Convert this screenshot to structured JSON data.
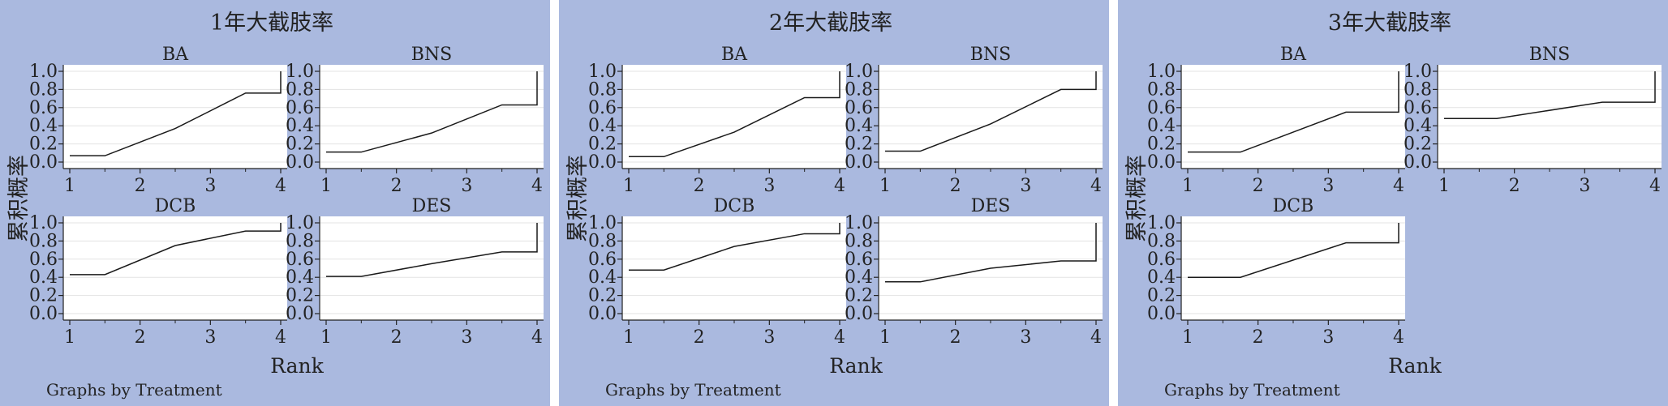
{
  "colors": {
    "panel_bg": "#aab9df",
    "plot_bg": "#ffffff",
    "grid": "#e3e3e3",
    "line": "#1a1a1a",
    "text": "#222222"
  },
  "common": {
    "xlabel": "Rank",
    "ylabel": "累积概率",
    "note": "Graphs by Treatment",
    "x_ticks": [
      "1",
      "2",
      "3",
      "4"
    ],
    "y_ticks": [
      "0.0",
      "0.2",
      "0.4",
      "0.6",
      "0.8",
      "1.0"
    ]
  },
  "chart_data": [
    {
      "type": "line",
      "title": "1年大截肢率",
      "xlabel": "Rank",
      "ylabel": "累积概率",
      "xlim": [
        1,
        4
      ],
      "ylim": [
        0,
        1
      ],
      "grid": true,
      "series": [
        {
          "name": "BA",
          "x": [
            1,
            1.5,
            2.5,
            3.5,
            4,
            4
          ],
          "y": [
            0.07,
            0.07,
            0.37,
            0.76,
            0.76,
            1.0
          ]
        },
        {
          "name": "BNS",
          "x": [
            1,
            1.5,
            2.5,
            3.5,
            4,
            4
          ],
          "y": [
            0.11,
            0.11,
            0.32,
            0.63,
            0.63,
            1.0
          ]
        },
        {
          "name": "DCB",
          "x": [
            1,
            1.5,
            2.5,
            3.5,
            4,
            4
          ],
          "y": [
            0.43,
            0.43,
            0.75,
            0.91,
            0.91,
            1.0
          ]
        },
        {
          "name": "DES",
          "x": [
            1,
            1.5,
            2.5,
            3.5,
            4,
            4
          ],
          "y": [
            0.41,
            0.41,
            0.55,
            0.68,
            0.68,
            1.0
          ]
        }
      ]
    },
    {
      "type": "line",
      "title": "2年大截肢率",
      "xlabel": "Rank",
      "ylabel": "累积概率",
      "xlim": [
        1,
        4
      ],
      "ylim": [
        0,
        1
      ],
      "grid": true,
      "series": [
        {
          "name": "BA",
          "x": [
            1,
            1.5,
            2.5,
            3.5,
            4,
            4
          ],
          "y": [
            0.06,
            0.06,
            0.33,
            0.71,
            0.71,
            1.0
          ]
        },
        {
          "name": "BNS",
          "x": [
            1,
            1.5,
            2.5,
            3.5,
            4,
            4
          ],
          "y": [
            0.12,
            0.12,
            0.42,
            0.8,
            0.8,
            1.0
          ]
        },
        {
          "name": "DCB",
          "x": [
            1,
            1.5,
            2.5,
            3.5,
            4,
            4
          ],
          "y": [
            0.48,
            0.48,
            0.74,
            0.88,
            0.88,
            1.0
          ]
        },
        {
          "name": "DES",
          "x": [
            1,
            1.5,
            2.5,
            3.5,
            4,
            4
          ],
          "y": [
            0.35,
            0.35,
            0.5,
            0.58,
            0.58,
            1.0
          ]
        }
      ]
    },
    {
      "type": "line",
      "title": "3年大截肢率",
      "xlabel": "Rank",
      "ylabel": "累积概率",
      "xlim": [
        1,
        4
      ],
      "ylim": [
        0,
        1
      ],
      "grid": true,
      "series": [
        {
          "name": "BA",
          "x": [
            1,
            1.75,
            3.25,
            4,
            4
          ],
          "y": [
            0.11,
            0.11,
            0.55,
            0.55,
            1.0
          ]
        },
        {
          "name": "BNS",
          "x": [
            1,
            1.75,
            3.25,
            4,
            4
          ],
          "y": [
            0.48,
            0.48,
            0.66,
            0.66,
            1.0
          ]
        },
        {
          "name": "DCB",
          "x": [
            1,
            1.75,
            3.25,
            4,
            4
          ],
          "y": [
            0.4,
            0.4,
            0.78,
            0.78,
            1.0
          ]
        }
      ]
    }
  ]
}
